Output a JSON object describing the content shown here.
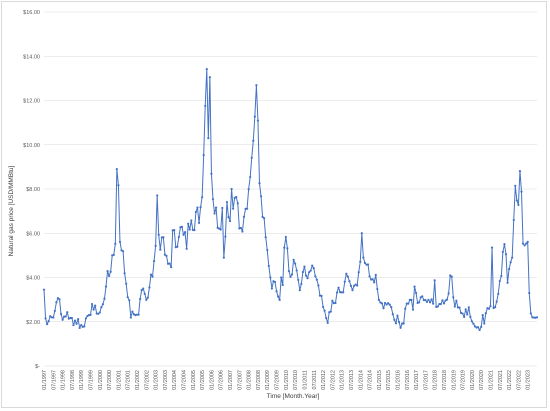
{
  "chart_data": {
    "type": "line",
    "title": "",
    "xlabel": "Time [Month.Year]",
    "ylabel": "Natural gas price [USD/MMBtu]",
    "ylim": [
      0,
      16
    ],
    "yticks": [
      {
        "value": 0,
        "label": "$-"
      },
      {
        "value": 2,
        "label": "$2.00"
      },
      {
        "value": 4,
        "label": "$4.00"
      },
      {
        "value": 6,
        "label": "$6.00"
      },
      {
        "value": 8,
        "label": "$8.00"
      },
      {
        "value": 10,
        "label": "$10.00"
      },
      {
        "value": 12,
        "label": "$12.00"
      },
      {
        "value": 14,
        "label": "$14.00"
      },
      {
        "value": 16,
        "label": "$16.00"
      }
    ],
    "xtick_labels": [
      "01/1997",
      "07/1997",
      "01/1998",
      "07/1998",
      "01/1999",
      "07/1999",
      "01/2000",
      "07/2000",
      "01/2001",
      "07/2001",
      "01/2002",
      "07/2002",
      "01/2003",
      "07/2003",
      "01/2004",
      "07/2004",
      "01/2005",
      "07/2005",
      "01/2006",
      "07/2006",
      "01/2007",
      "07/2007",
      "01/2008",
      "07/2008",
      "01/2009",
      "07/2009",
      "01/2010",
      "07/2010",
      "01/2011",
      "07/2011",
      "01/2012",
      "07/2012",
      "01/2013",
      "07/2013",
      "01/2014",
      "07/2014",
      "01/2015",
      "07/2015",
      "01/2016",
      "07/2016",
      "01/2017",
      "07/2017",
      "01/2018",
      "07/2018",
      "01/2019",
      "07/2019",
      "01/2020",
      "07/2020",
      "01/2021",
      "07/2021",
      "01/2022",
      "07/2022",
      "01/2023"
    ],
    "x_start": "01/1997",
    "grid": true,
    "legend": "none",
    "series_color": "#4472c4",
    "grid_color": "#d9d9d9",
    "series": [
      {
        "values": [
          3.45,
          2.15,
          1.89,
          2.03,
          2.25,
          2.2,
          2.19,
          2.49,
          2.88,
          3.07,
          3.01,
          2.35,
          2.09,
          2.23,
          2.24,
          2.43,
          2.14,
          2.17,
          2.17,
          1.85,
          2.05,
          1.91,
          2.12,
          1.72,
          1.85,
          1.77,
          1.79,
          2.15,
          2.26,
          2.3,
          2.31,
          2.8,
          2.55,
          2.73,
          2.37,
          2.36,
          2.42,
          2.66,
          2.79,
          3.04,
          3.59,
          4.29,
          4.07,
          4.26,
          5.0,
          5.02,
          5.52,
          8.9,
          8.17,
          5.61,
          5.23,
          5.19,
          4.19,
          3.72,
          3.11,
          2.97,
          2.19,
          2.46,
          2.34,
          2.3,
          2.32,
          2.32,
          3.03,
          3.43,
          3.5,
          3.26,
          2.99,
          3.09,
          3.55,
          4.13,
          4.04,
          4.74,
          5.43,
          7.71,
          5.93,
          5.26,
          5.81,
          5.82,
          5.03,
          4.98,
          4.62,
          4.63,
          4.47,
          6.13,
          6.14,
          5.37,
          5.39,
          5.83,
          6.27,
          6.29,
          5.93,
          6.05,
          5.3,
          6.43,
          6.17,
          6.58,
          6.15,
          6.14,
          6.96,
          7.16,
          6.47,
          7.18,
          7.63,
          9.53,
          11.75,
          13.42,
          10.3,
          13.05,
          8.69,
          7.54,
          6.89,
          7.16,
          6.25,
          6.21,
          6.17,
          7.14,
          4.9,
          5.85,
          7.41,
          6.73,
          6.55,
          8.0,
          7.11,
          7.6,
          7.64,
          7.35,
          6.22,
          6.24,
          6.08,
          6.74,
          7.1,
          7.11,
          7.99,
          8.54,
          9.41,
          10.18,
          11.27,
          12.69,
          11.09,
          8.26,
          7.67,
          6.74,
          6.68,
          5.82,
          5.24,
          4.52,
          4.0,
          3.5,
          3.83,
          3.8,
          3.38,
          3.14,
          2.99,
          4.0,
          3.66,
          5.35,
          5.83,
          5.32,
          4.29,
          4.03,
          4.14,
          4.8,
          4.63,
          4.32,
          3.89,
          3.43,
          3.71,
          4.25,
          4.49,
          4.09,
          3.97,
          4.24,
          4.31,
          4.54,
          4.42,
          4.06,
          3.9,
          3.64,
          3.18,
          3.17,
          2.67,
          2.5,
          2.17,
          1.95,
          2.43,
          2.46,
          2.95,
          2.84,
          2.85,
          3.32,
          3.54,
          3.34,
          3.33,
          3.33,
          3.81,
          4.17,
          4.04,
          3.83,
          3.62,
          3.43,
          3.62,
          3.68,
          3.64,
          4.24,
          4.71,
          6.0,
          4.9,
          4.66,
          4.58,
          4.59,
          4.05,
          3.91,
          3.92,
          3.78,
          4.12,
          3.48,
          2.99,
          2.87,
          2.83,
          2.61,
          2.85,
          2.78,
          2.84,
          2.77,
          2.66,
          2.34,
          2.09,
          1.93,
          2.28,
          1.99,
          1.73,
          1.92,
          1.92,
          2.59,
          2.82,
          2.82,
          2.99,
          2.99,
          2.55,
          3.59,
          3.3,
          2.85,
          2.88,
          3.1,
          3.15,
          2.98,
          2.98,
          2.9,
          2.99,
          2.88,
          3.01,
          2.82,
          3.87,
          2.67,
          2.69,
          2.8,
          2.8,
          2.97,
          2.83,
          2.96,
          3.0,
          3.28,
          4.09,
          4.04,
          3.11,
          2.69,
          2.95,
          2.65,
          2.64,
          2.4,
          2.37,
          2.22,
          2.56,
          2.33,
          2.65,
          2.22,
          2.02,
          1.91,
          1.79,
          1.74,
          1.75,
          1.63,
          1.77,
          2.3,
          1.92,
          2.39,
          2.61,
          2.59,
          2.71,
          5.35,
          2.62,
          2.66,
          2.91,
          3.26,
          3.84,
          4.07,
          5.16,
          5.51,
          5.05,
          3.76,
          4.38,
          4.69,
          4.9,
          6.6,
          8.14,
          7.48,
          7.28,
          8.81,
          7.88,
          5.53,
          5.45,
          5.53,
          5.61,
          3.3,
          2.38,
          2.2,
          2.19,
          2.18,
          2.2
        ]
      }
    ]
  }
}
